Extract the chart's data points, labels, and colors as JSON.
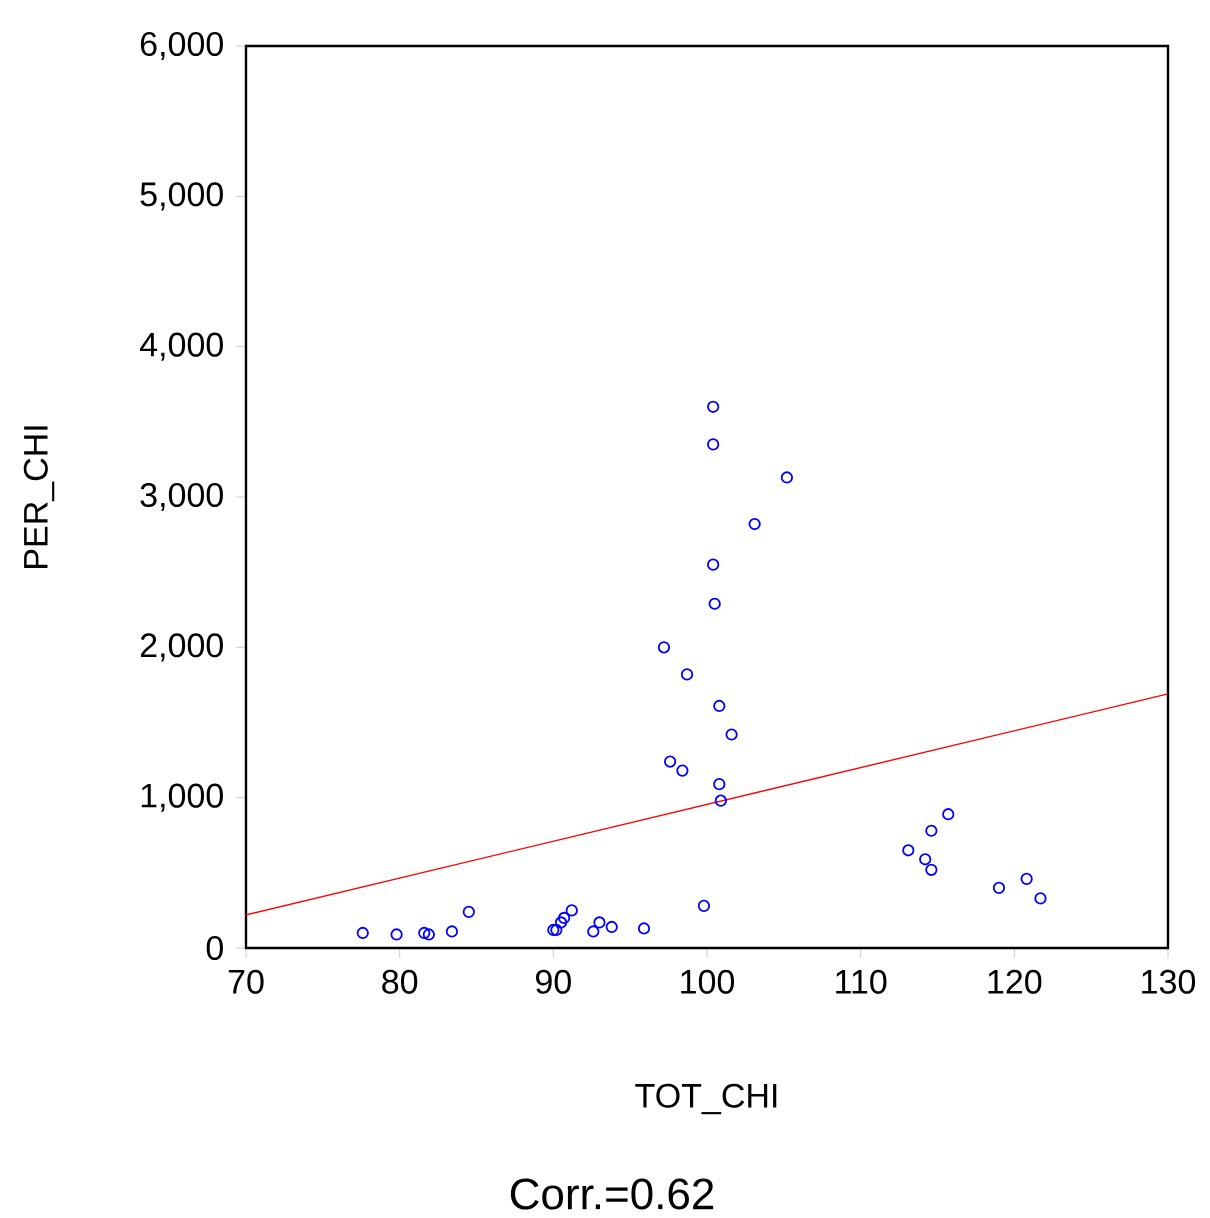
{
  "chart_data": {
    "type": "scatter",
    "xlabel": "TOT_CHI",
    "ylabel": "PER_CHI",
    "annotations": [
      "Corr.=0.62"
    ],
    "xlim": [
      70,
      130
    ],
    "xticks": [
      70,
      80,
      90,
      100,
      110,
      120,
      130
    ],
    "ylim": [
      0,
      6000
    ],
    "yticks": [
      0,
      {
        "value": 1000,
        "label": "1,000"
      },
      {
        "value": 2000,
        "label": "2,000"
      },
      {
        "value": 3000,
        "label": "3,000"
      },
      {
        "value": 4000,
        "label": "4,000"
      },
      {
        "value": 5000,
        "label": "5,000"
      },
      {
        "value": 6000,
        "label": "6,000"
      }
    ],
    "series": [
      {
        "type": "scatter",
        "marker": "circle",
        "color": "#0000ff",
        "x": [
          77.6,
          79.8,
          81.6,
          81.9,
          83.4,
          84.5,
          90.0,
          90.2,
          90.5,
          90.7,
          91.2,
          92.6,
          93.0,
          93.8,
          95.9,
          99.8,
          100.4,
          100.4,
          103.1,
          100.4,
          100.5,
          97.2,
          98.7,
          100.8,
          101.6,
          97.6,
          98.4,
          100.8,
          100.9,
          105.2,
          115.7,
          114.6,
          113.1,
          114.2,
          114.6,
          119.0,
          120.8,
          121.7
        ],
        "values": [
          100,
          90,
          100,
          90,
          110,
          240,
          120,
          120,
          170,
          200,
          250,
          110,
          170,
          140,
          130,
          280,
          3600,
          3350,
          2820,
          2550,
          2290,
          2000,
          1820,
          1610,
          1420,
          1240,
          1180,
          1090,
          980,
          3130,
          890,
          780,
          650,
          590,
          520,
          400,
          460,
          330
        ]
      },
      {
        "type": "line",
        "color": "#ff0000",
        "line_style": "solid",
        "x": [
          70,
          130
        ],
        "values": [
          220,
          1690
        ]
      }
    ]
  }
}
